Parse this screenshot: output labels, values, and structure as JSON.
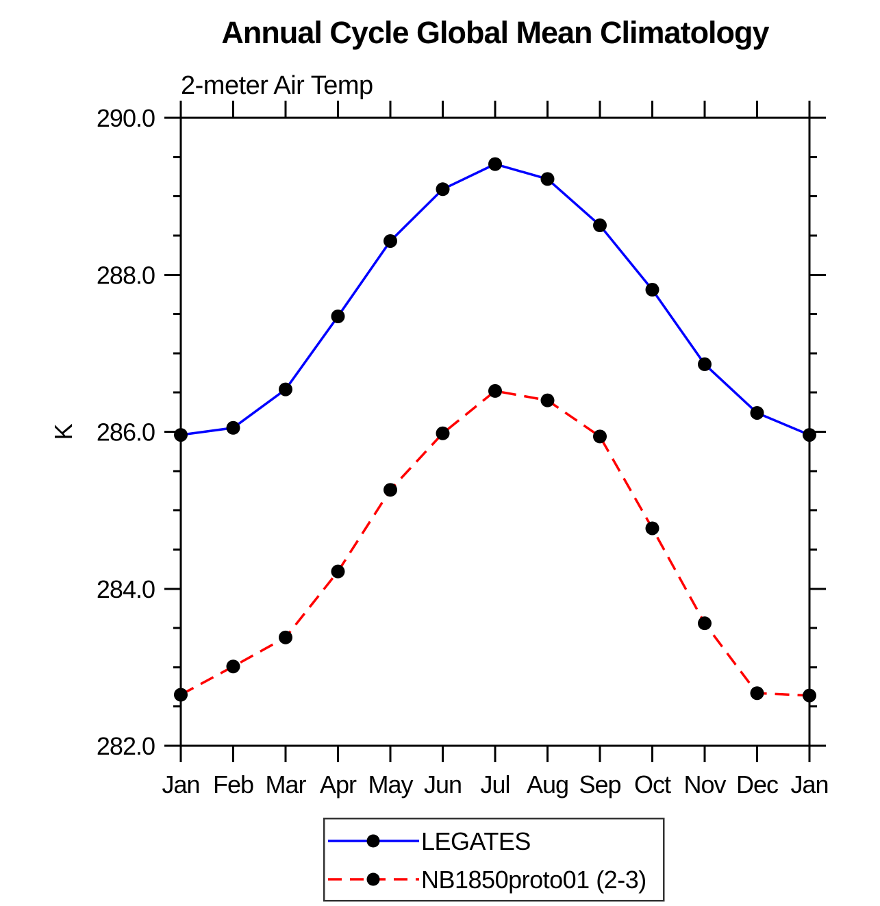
{
  "chart_data": {
    "type": "line",
    "title": "Annual Cycle Global Mean Climatology",
    "subtitle": "2-meter Air Temp",
    "ylabel": "K",
    "xlabel": "",
    "categories": [
      "Jan",
      "Feb",
      "Mar",
      "Apr",
      "May",
      "Jun",
      "Jul",
      "Aug",
      "Sep",
      "Oct",
      "Nov",
      "Dec",
      "Jan"
    ],
    "ylim": [
      282.0,
      290.0
    ],
    "ytick_major": [
      282.0,
      284.0,
      286.0,
      288.0,
      290.0
    ],
    "ytick_labels": [
      "282.0",
      "284.0",
      "286.0",
      "288.0",
      "290.0"
    ],
    "ytick_minor_step": 0.5,
    "grid": false,
    "legend_position": "bottom-center",
    "axis_color": "#000000",
    "marker_shape": "filled-circle",
    "series": [
      {
        "name": "LEGATES",
        "color": "#0000ff",
        "style": "solid",
        "marker_color": "#000000",
        "values": [
          285.96,
          286.05,
          286.54,
          287.47,
          288.43,
          289.09,
          289.41,
          289.22,
          288.63,
          287.81,
          286.86,
          286.24,
          285.96
        ]
      },
      {
        "name": "NB1850proto01 (2-3)",
        "color": "#ff0000",
        "style": "dashed",
        "marker_color": "#000000",
        "values": [
          282.65,
          283.01,
          283.38,
          284.22,
          285.26,
          285.98,
          286.52,
          286.4,
          285.94,
          284.77,
          283.56,
          282.67,
          282.64
        ]
      }
    ]
  }
}
